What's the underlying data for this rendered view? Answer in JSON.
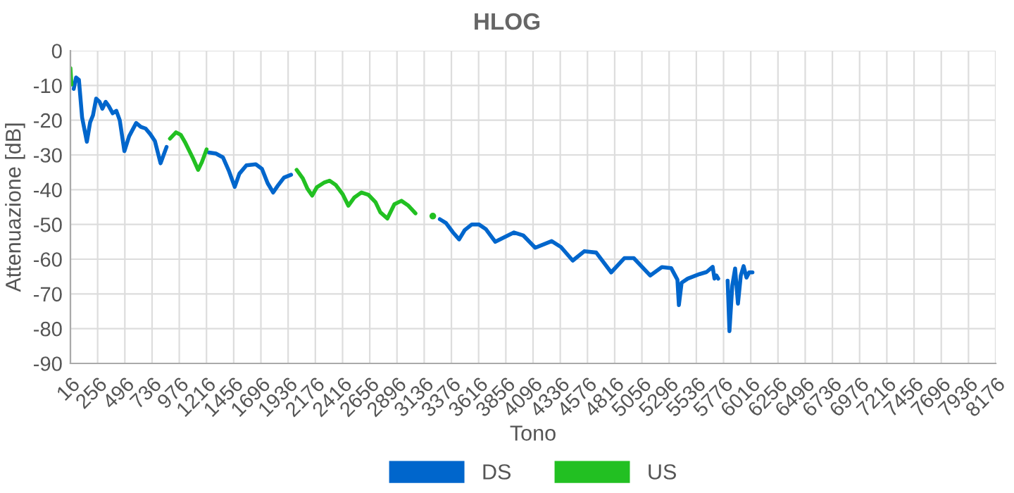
{
  "chart_data": {
    "type": "line",
    "title": "HLOG",
    "xlabel": "Tono",
    "ylabel": "Attenuazione [dB]",
    "xlim": [
      16,
      8176
    ],
    "ylim": [
      -90,
      0
    ],
    "xticks": [
      16,
      256,
      496,
      736,
      976,
      1216,
      1456,
      1696,
      1936,
      2176,
      2416,
      2656,
      2896,
      3136,
      3376,
      3616,
      3856,
      4096,
      4336,
      4576,
      4816,
      5056,
      5296,
      5536,
      5776,
      6016,
      6256,
      6496,
      6736,
      6976,
      7216,
      7456,
      7696,
      7936,
      8176
    ],
    "yticks": [
      -90,
      -80,
      -70,
      -60,
      -50,
      -40,
      -30,
      -20,
      -10,
      0
    ],
    "grid": true,
    "legend": "bottom",
    "marker": "none",
    "line_style": "solid",
    "series": [
      {
        "name": "DS",
        "color": "#0066cc",
        "x": [
          45,
          66,
          91,
          119,
          161,
          190,
          215,
          243,
          273,
          298,
          327,
          355,
          389,
          421,
          451,
          492,
          534,
          596,
          637,
          679,
          720,
          761,
          811,
          864,
          875,
          1237,
          1299,
          1361,
          1415,
          1465,
          1506,
          1568,
          1651,
          1705,
          1755,
          1804,
          1846,
          1900,
          1962,
          1990,
          3274,
          3328,
          3390,
          3444,
          3494,
          3556,
          3618,
          3681,
          3763,
          3928,
          4011,
          4115,
          4260,
          4342,
          4446,
          4549,
          4653,
          4785,
          4901,
          4984,
          5129,
          5232,
          5315,
          5369,
          5382,
          5406,
          5460,
          5564,
          5626,
          5680,
          5696,
          5713,
          5729,
          5770,
          5812,
          5828,
          5853,
          5878,
          5903,
          5928,
          5953,
          5978,
          6002,
          6031
        ],
        "values": [
          -11,
          -7.7,
          -8.4,
          -19.2,
          -26.2,
          -20.6,
          -18.6,
          -13.8,
          -14.7,
          -16.7,
          -14.7,
          -16,
          -18,
          -17.3,
          -20,
          -28.9,
          -24.6,
          -20.8,
          -21.9,
          -22.4,
          -24,
          -26,
          -32.4,
          -27.7,
          null,
          -29.3,
          -29.6,
          -30.7,
          -34.7,
          -39.2,
          -35.4,
          -33,
          -32.7,
          -34,
          -38.1,
          -40.8,
          -38.8,
          -36.5,
          -35.7,
          null,
          -48.5,
          -49.6,
          -52.3,
          -54.3,
          -51.6,
          -50,
          -50,
          -51.4,
          -55,
          -52.3,
          -53.2,
          -56.7,
          -54.8,
          -56.5,
          -60.4,
          -57.7,
          -58.1,
          -63.8,
          -59.7,
          -59.7,
          -64.7,
          -62.3,
          -62.6,
          -65.9,
          -73.2,
          -66.8,
          -65.6,
          -64.3,
          -63.7,
          -62.2,
          -65.6,
          -64.7,
          -65.6,
          null,
          -66.2,
          -80.7,
          -67.6,
          -62.7,
          -72.8,
          -64.7,
          -62,
          -65.3,
          -63.8,
          -63.8
        ]
      },
      {
        "name": "US",
        "color": "#22c022",
        "x": [
          16,
          25,
          35,
          894,
          947,
          989,
          1031,
          1093,
          1142,
          1175,
          1217,
          1227,
          2011,
          2065,
          2106,
          2148,
          2189,
          2251,
          2301,
          2355,
          2417,
          2467,
          2521,
          2583,
          2645,
          2707,
          2749,
          2811,
          2873,
          2935,
          2997,
          3059
        ],
        "values": [
          -5,
          -9.7,
          null,
          -25.3,
          -23.5,
          -24.2,
          -26.6,
          -30.7,
          -34.3,
          -32.1,
          -28.4,
          null,
          -34.3,
          -36.7,
          -39.7,
          -41.7,
          -39.3,
          -38,
          -37.4,
          -38.6,
          -41.3,
          -44.6,
          -42.2,
          -40.8,
          -41.5,
          -43.6,
          -46.5,
          -48.3,
          -44.2,
          -43.2,
          -44.6,
          -46.8
        ]
      },
      {
        "type": "scatter",
        "color": "#22c022",
        "x": [
          3212
        ],
        "values": [
          -47.6
        ]
      }
    ]
  }
}
